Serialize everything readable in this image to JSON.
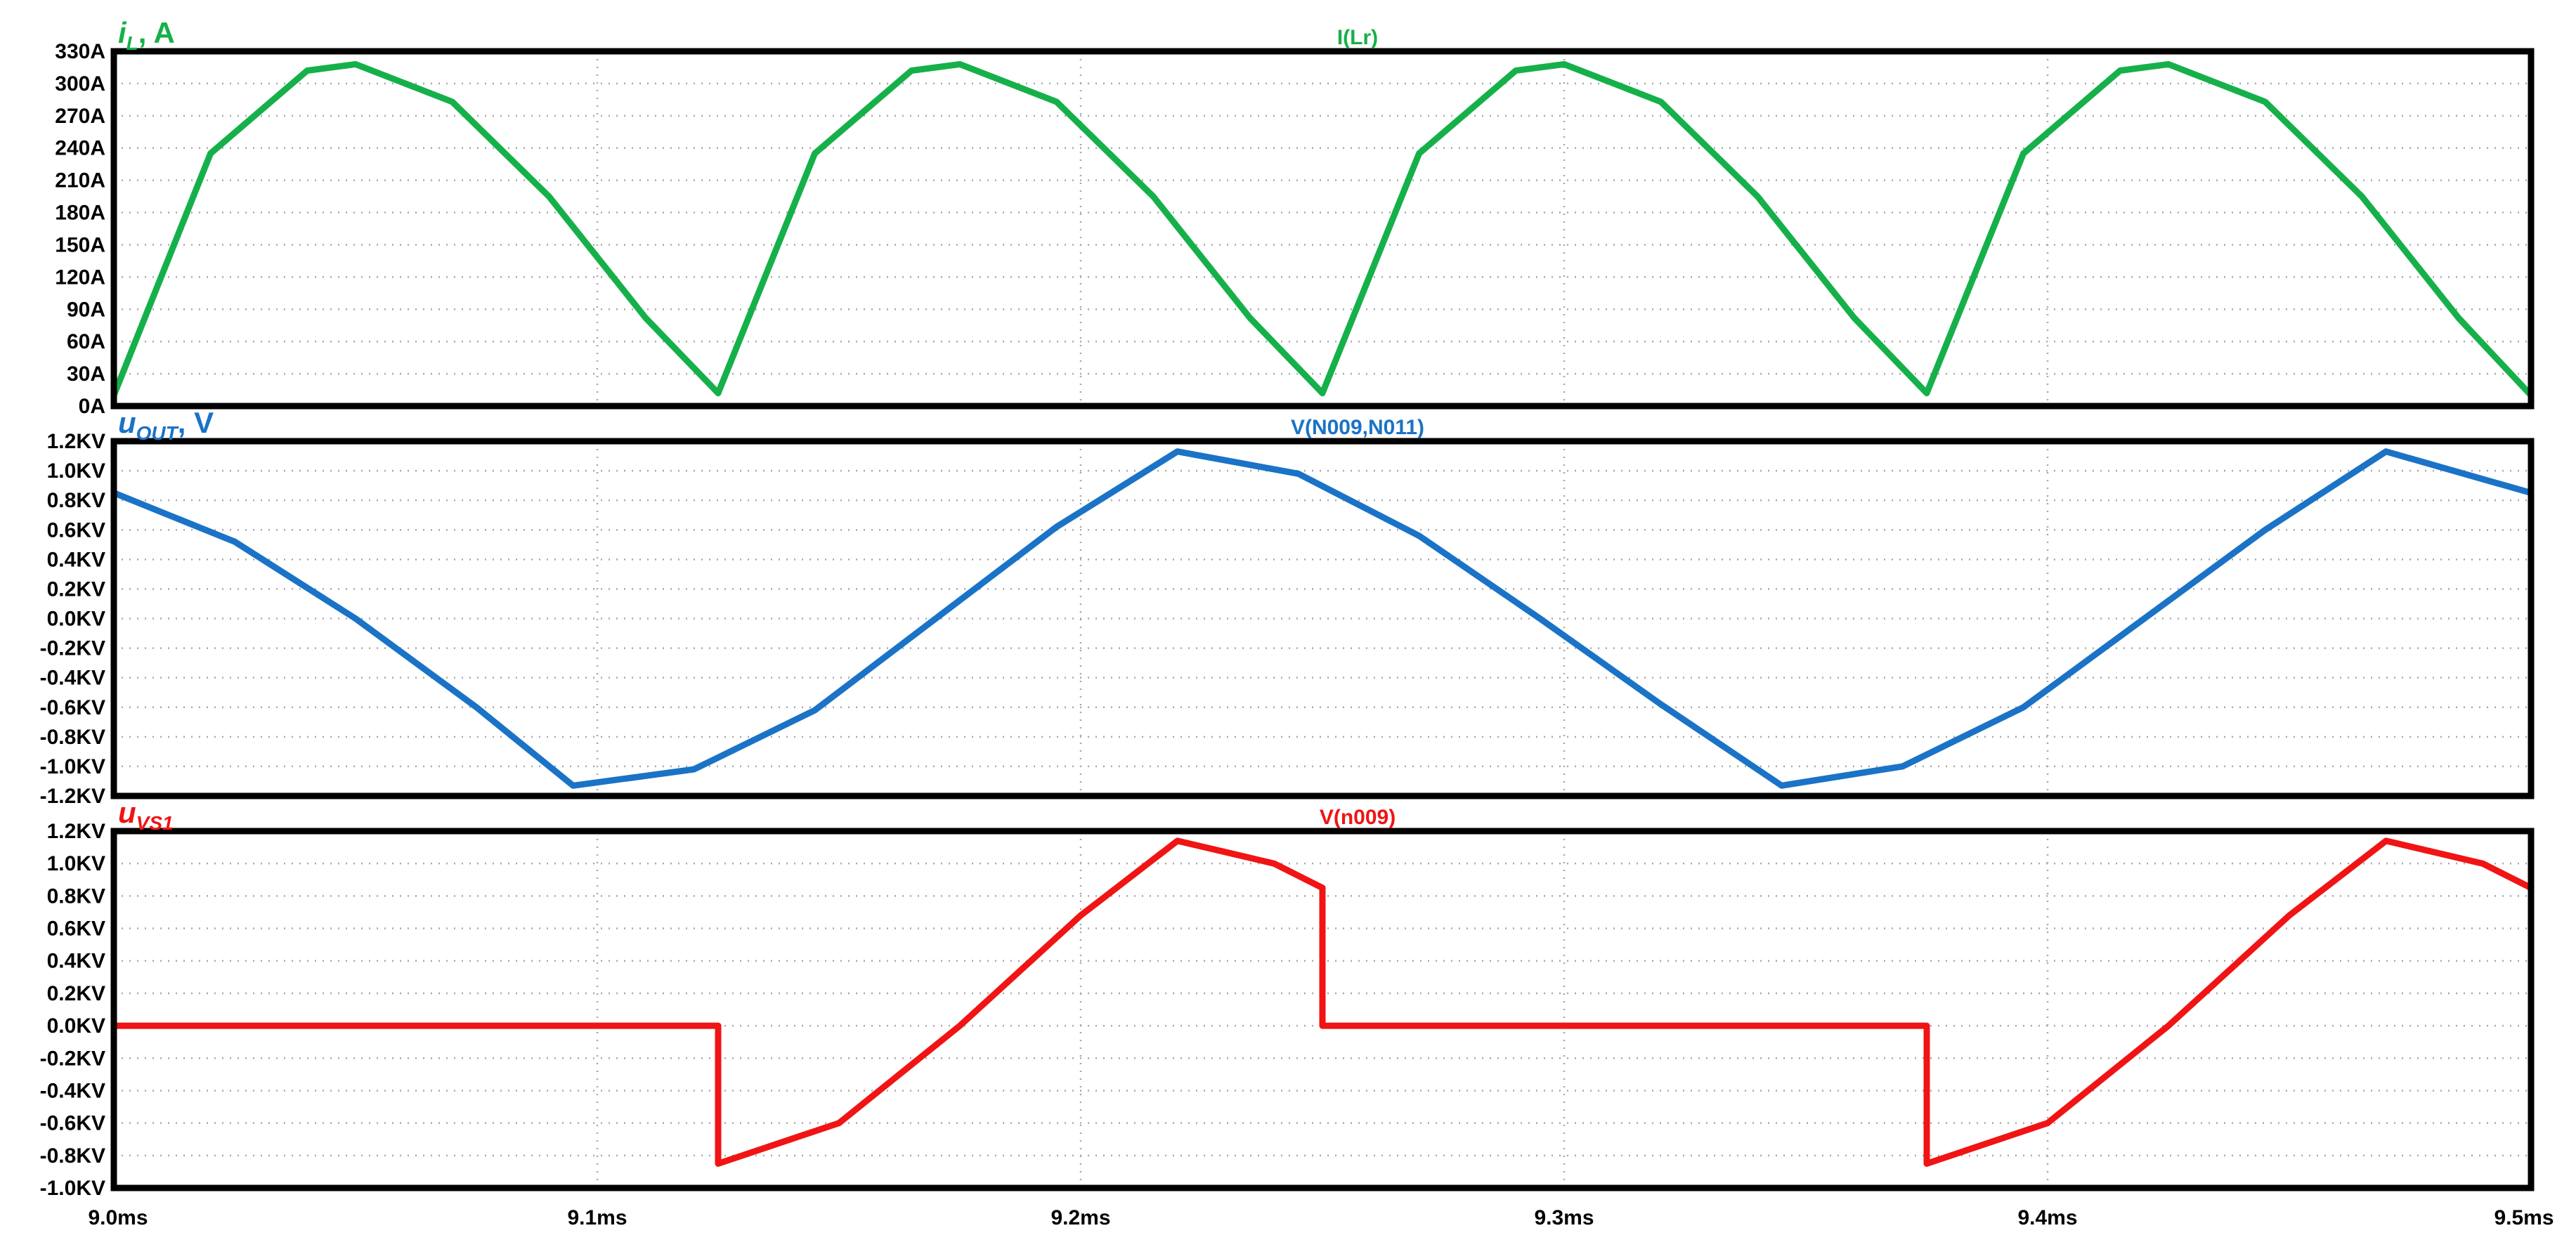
{
  "chart_data": [
    {
      "type": "line",
      "trace_label": "I(Lr)",
      "corner_label": {
        "main": "i",
        "sub": "L",
        "tail": ", A"
      },
      "color": "#16b04a",
      "x_ticks": [
        "9.0ms",
        "9.1ms",
        "9.2ms",
        "9.3ms",
        "9.4ms",
        "9.5ms"
      ],
      "xlim": [
        9.0,
        9.5
      ],
      "ylim": [
        0,
        330
      ],
      "y_ticks": [
        {
          "v": 0,
          "label": "0A"
        },
        {
          "v": 30,
          "label": "30A"
        },
        {
          "v": 60,
          "label": "60A"
        },
        {
          "v": 90,
          "label": "90A"
        },
        {
          "v": 120,
          "label": "120A"
        },
        {
          "v": 150,
          "label": "150A"
        },
        {
          "v": 180,
          "label": "180A"
        },
        {
          "v": 210,
          "label": "210A"
        },
        {
          "v": 240,
          "label": "240A"
        },
        {
          "v": 270,
          "label": "270A"
        },
        {
          "v": 300,
          "label": "300A"
        },
        {
          "v": 330,
          "label": "330A"
        }
      ],
      "grid": true,
      "series": [
        {
          "x": [
            9.0,
            9.02,
            9.04,
            9.05,
            9.07,
            9.09,
            9.11,
            9.125,
            9.145,
            9.165,
            9.175,
            9.195,
            9.215,
            9.235,
            9.25,
            9.27,
            9.29,
            9.3,
            9.32,
            9.34,
            9.36,
            9.375,
            9.395,
            9.415,
            9.425,
            9.445,
            9.465,
            9.485,
            9.5
          ],
          "y": [
            10,
            235,
            312,
            318,
            283,
            195,
            82,
            12,
            235,
            312,
            318,
            283,
            195,
            82,
            12,
            235,
            312,
            318,
            283,
            195,
            82,
            12,
            235,
            312,
            318,
            283,
            195,
            82,
            10
          ]
        }
      ]
    },
    {
      "type": "line",
      "trace_label": "V(N009,N011)",
      "corner_label": {
        "main": "u",
        "sub": "OUT",
        "tail": ", V"
      },
      "color": "#1a73c6",
      "x_ticks": [
        "9.0ms",
        "9.1ms",
        "9.2ms",
        "9.3ms",
        "9.4ms",
        "9.5ms"
      ],
      "xlim": [
        9.0,
        9.5
      ],
      "ylim": [
        -1.2,
        1.2
      ],
      "y_ticks": [
        {
          "v": -1.2,
          "label": "-1.2KV"
        },
        {
          "v": -1.0,
          "label": "-1.0KV"
        },
        {
          "v": -0.8,
          "label": "-0.8KV"
        },
        {
          "v": -0.6,
          "label": "-0.6KV"
        },
        {
          "v": -0.4,
          "label": "-0.4KV"
        },
        {
          "v": -0.2,
          "label": "-0.2KV"
        },
        {
          "v": 0.0,
          "label": "0.0KV"
        },
        {
          "v": 0.2,
          "label": "0.2KV"
        },
        {
          "v": 0.4,
          "label": "0.4KV"
        },
        {
          "v": 0.6,
          "label": "0.6KV"
        },
        {
          "v": 0.8,
          "label": "0.8KV"
        },
        {
          "v": 1.0,
          "label": "1.0KV"
        },
        {
          "v": 1.2,
          "label": "1.2KV"
        }
      ],
      "grid": true,
      "series": [
        {
          "x": [
            9.0,
            9.025,
            9.05,
            9.075,
            9.095,
            9.12,
            9.145,
            9.17,
            9.195,
            9.22,
            9.245,
            9.27,
            9.295,
            9.32,
            9.345,
            9.37,
            9.395,
            9.42,
            9.445,
            9.47,
            9.5
          ],
          "y": [
            0.85,
            0.52,
            0.0,
            -0.6,
            -1.13,
            -1.02,
            -0.62,
            0.0,
            0.62,
            1.13,
            0.98,
            0.56,
            0.0,
            -0.58,
            -1.13,
            -1.0,
            -0.6,
            0.0,
            0.6,
            1.13,
            0.85
          ]
        }
      ]
    },
    {
      "type": "line",
      "trace_label": "V(n009)",
      "corner_label": {
        "main": "u",
        "sub": "VS1",
        "tail": ""
      },
      "color": "#f01414",
      "x_ticks": [
        "9.0ms",
        "9.1ms",
        "9.2ms",
        "9.3ms",
        "9.4ms",
        "9.5ms"
      ],
      "xlim": [
        9.0,
        9.5
      ],
      "ylim": [
        -1.0,
        1.2
      ],
      "y_ticks": [
        {
          "v": -1.0,
          "label": "-1.0KV"
        },
        {
          "v": -0.8,
          "label": "-0.8KV"
        },
        {
          "v": -0.6,
          "label": "-0.6KV"
        },
        {
          "v": -0.4,
          "label": "-0.4KV"
        },
        {
          "v": -0.2,
          "label": "-0.2KV"
        },
        {
          "v": 0.0,
          "label": "0.0KV"
        },
        {
          "v": 0.2,
          "label": "0.2KV"
        },
        {
          "v": 0.4,
          "label": "0.4KV"
        },
        {
          "v": 0.6,
          "label": "0.6KV"
        },
        {
          "v": 0.8,
          "label": "0.8KV"
        },
        {
          "v": 1.0,
          "label": "1.0KV"
        },
        {
          "v": 1.2,
          "label": "1.2KV"
        }
      ],
      "grid": true,
      "series": [
        {
          "x": [
            9.0,
            9.0,
            9.125,
            9.125,
            9.15,
            9.175,
            9.2,
            9.22,
            9.24,
            9.25,
            9.25,
            9.375,
            9.375,
            9.4,
            9.425,
            9.45,
            9.47,
            9.49,
            9.5
          ],
          "y": [
            0.85,
            0.0,
            0.0,
            -0.85,
            -0.6,
            0.0,
            0.68,
            1.14,
            1.0,
            0.85,
            0.0,
            0.0,
            -0.85,
            -0.6,
            0.0,
            0.68,
            1.14,
            1.0,
            0.85
          ]
        }
      ]
    }
  ]
}
